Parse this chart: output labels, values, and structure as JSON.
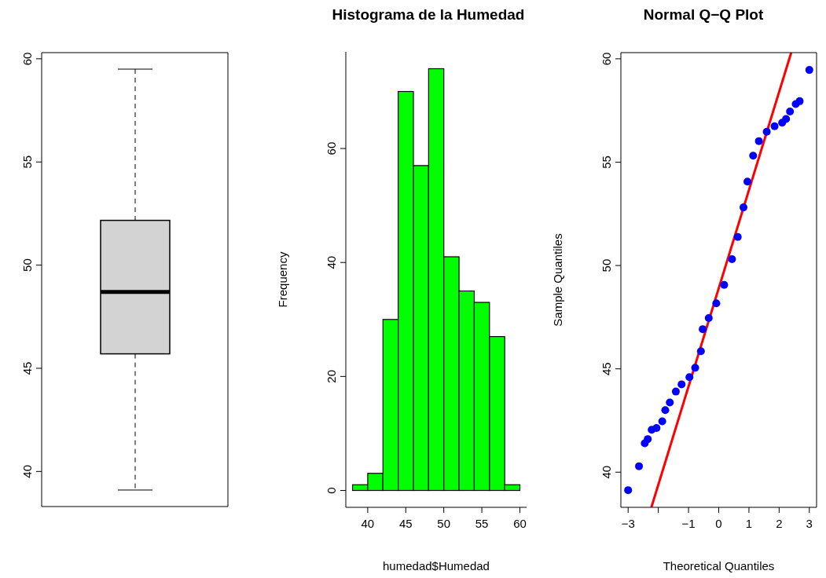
{
  "chart_data": [
    {
      "type": "box",
      "categories": [
        null
      ],
      "color": "#d3d3d3",
      "boxes": [
        {
          "low": 39.1,
          "q1": 45.7,
          "median": 48.7,
          "q3": 52.17,
          "high": 59.5
        }
      ],
      "ylim": [
        38.3,
        60.3
      ],
      "yticks": [
        40,
        45,
        50,
        55,
        60
      ]
    },
    {
      "type": "histogram",
      "title": "Histograma de la Humedad",
      "xlabel": "humedad$Humedad",
      "ylabel": "Frequency",
      "color": "#00ff00",
      "bins": [
        38,
        40,
        42,
        44,
        46,
        48,
        50,
        52,
        54,
        56,
        58,
        60
      ],
      "values": [
        1,
        3,
        30,
        70,
        57,
        74,
        41,
        35,
        33,
        27,
        1
      ],
      "xlim": [
        37.12,
        60.88
      ],
      "xticks": [
        40,
        45,
        50,
        55,
        60
      ],
      "ylim": [
        -2.96,
        76.96
      ],
      "yticks": [
        0,
        20,
        40,
        60
      ]
    },
    {
      "type": "scatter",
      "title": "Normal Q−Q Plot",
      "xlabel": "Theoretical Quantiles",
      "ylabel": "Sample Quantiles",
      "xlim": [
        -3.24,
        3.24
      ],
      "xticks": [
        {
          "value": -3,
          "label": "−3"
        },
        {
          "value": -2,
          "label": null
        },
        {
          "value": -1,
          "label": "−1"
        },
        0,
        1,
        2,
        3
      ],
      "ylim": [
        38.3,
        60.3
      ],
      "yticks": [
        40,
        45,
        50,
        55,
        60
      ],
      "series": [
        {
          "type": "scatter",
          "color": "#0000ff",
          "marker": "circle",
          "x": [
            -3,
            -2.64,
            -2.45,
            -2.35,
            -2.22,
            -2.06,
            -1.87,
            -1.77,
            -1.62,
            -1.42,
            -1.23,
            -0.97,
            -0.78,
            -0.59,
            -0.53,
            -0.33,
            -0.08,
            0.18,
            0.44,
            0.63,
            0.82,
            0.95,
            1.14,
            1.33,
            1.59,
            1.85,
            2.1,
            2.23,
            2.36,
            2.55,
            2.68,
            3
          ],
          "values": [
            39.13,
            40.29,
            41.4,
            41.6,
            42.05,
            42.14,
            42.46,
            43.0,
            43.37,
            43.9,
            44.25,
            44.6,
            45.05,
            45.85,
            46.92,
            47.46,
            48.17,
            49.06,
            50.31,
            51.38,
            52.81,
            54.06,
            55.31,
            56.02,
            56.47,
            56.74,
            56.91,
            57.09,
            57.45,
            57.81,
            57.95,
            59.46
          ]
        },
        {
          "type": "line",
          "color": "#ff0000",
          "x": [
            -2.23,
            2.4
          ],
          "values": [
            38.3,
            60.3
          ]
        }
      ]
    }
  ]
}
